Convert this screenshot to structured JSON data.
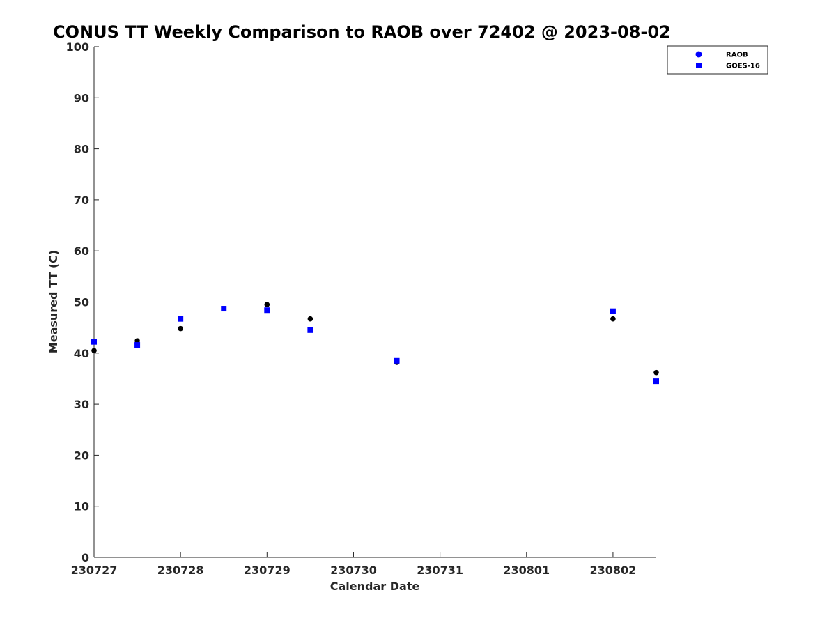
{
  "chart_data": {
    "type": "scatter",
    "title": "CONUS TT Weekly Comparison to RAOB over 72402 @ 2023-08-02",
    "xlabel": "Calendar Date",
    "ylabel": "Measured TT (C)",
    "xlim": [
      "230727",
      "230802 12Z"
    ],
    "ylim": [
      0,
      100
    ],
    "x_ticks": [
      "230727",
      "230728",
      "230729",
      "230730",
      "230731",
      "230801",
      "230802"
    ],
    "y_ticks": [
      0,
      10,
      20,
      30,
      40,
      50,
      60,
      70,
      80,
      90,
      100
    ],
    "grid": false,
    "legend_position": "top-right",
    "series": [
      {
        "name": "RAOB",
        "marker": "circle",
        "color": "#000000",
        "legend_color": "#0000ff",
        "points": [
          {
            "x": "230727 00Z",
            "y": 40.5
          },
          {
            "x": "230727 12Z",
            "y": 42.4
          },
          {
            "x": "230728 00Z",
            "y": 44.8
          },
          {
            "x": "230728 12Z",
            "y": 48.7
          },
          {
            "x": "230729 00Z",
            "y": 49.5
          },
          {
            "x": "230729 12Z",
            "y": 46.7
          },
          {
            "x": "230730 12Z",
            "y": 38.2
          },
          {
            "x": "230802 00Z",
            "y": 46.7
          },
          {
            "x": "230802 12Z",
            "y": 36.2
          }
        ]
      },
      {
        "name": "GOES-16",
        "marker": "square",
        "color": "#0000ff",
        "legend_color": "#0000ff",
        "points": [
          {
            "x": "230727 00Z",
            "y": 42.2
          },
          {
            "x": "230727 12Z",
            "y": 41.6
          },
          {
            "x": "230728 00Z",
            "y": 46.7
          },
          {
            "x": "230728 12Z",
            "y": 48.7
          },
          {
            "x": "230729 00Z",
            "y": 48.4
          },
          {
            "x": "230729 12Z",
            "y": 44.5
          },
          {
            "x": "230730 12Z",
            "y": 38.5
          },
          {
            "x": "230802 00Z",
            "y": 48.2
          },
          {
            "x": "230802 12Z",
            "y": 34.5
          }
        ]
      }
    ]
  }
}
